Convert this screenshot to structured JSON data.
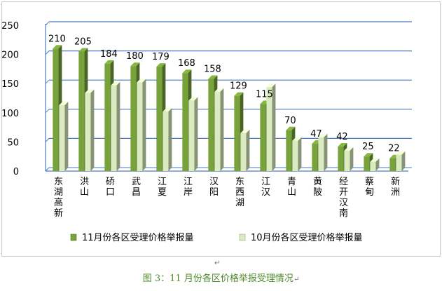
{
  "chart_data": {
    "type": "bar",
    "title": "",
    "xlabel": "",
    "ylabel": "",
    "ylim": [
      0,
      250
    ],
    "yticks": [
      0,
      50,
      100,
      150,
      200,
      250
    ],
    "grid": true,
    "legend_position": "bottom",
    "categories": [
      "东湖高新",
      "洪山",
      "硚口",
      "武昌",
      "江夏",
      "江岸",
      "汉阳",
      "东西湖",
      "江汉",
      "青山",
      "黄陂",
      "经开汉南",
      "蔡甸",
      "新洲"
    ],
    "series": [
      {
        "name": "11月份各区受理价格举报量",
        "color": "#77a33a",
        "values": [
          210,
          205,
          184,
          180,
          179,
          168,
          158,
          129,
          115,
          70,
          47,
          42,
          25,
          22
        ]
      },
      {
        "name": "10月份各区受理价格举报量",
        "color": "#d9ebbf",
        "values": [
          113,
          134,
          147,
          152,
          102,
          121,
          136,
          65,
          144,
          52,
          58,
          35,
          16,
          28
        ]
      }
    ],
    "data_labels": [
      210,
      205,
      184,
      180,
      179,
      168,
      158,
      129,
      115,
      70,
      47,
      42,
      25,
      22
    ]
  },
  "caption": "图 3：11 月份各区价格举报受理情况",
  "return_mark": "↵"
}
